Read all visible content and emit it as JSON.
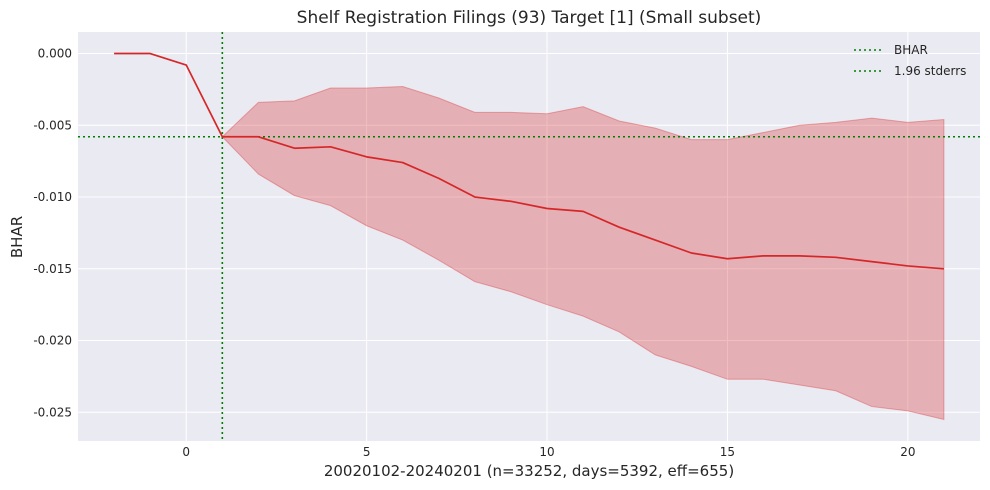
{
  "chart_data": {
    "type": "line",
    "title": "Shelf Registration Filings (93) Target [1] (Small subset)",
    "xlabel": "20020102-20240201 (n=33252, days=5392, eff=655)",
    "ylabel": "BHAR",
    "xlim": [
      -3,
      22
    ],
    "ylim": [
      -0.027,
      0.0015
    ],
    "x_ticks": [
      0,
      5,
      10,
      15,
      20
    ],
    "y_ticks": [
      0.0,
      -0.005,
      -0.01,
      -0.015,
      -0.02,
      -0.025
    ],
    "y_tick_labels": [
      "0.000",
      "-0.005",
      "-0.010",
      "-0.015",
      "-0.020",
      "-0.025"
    ],
    "grid": true,
    "legend_position": "top-right",
    "legend": [
      "BHAR",
      "1.96 stderrs"
    ],
    "colors": {
      "line": "#d62728",
      "band": "#d62728",
      "reference": "#008000",
      "plot_bg": "#eaeaf2"
    },
    "reference_lines": {
      "vertical_x": 1,
      "horizontal_y": -0.0058
    },
    "series": [
      {
        "name": "BHAR",
        "x": [
          -2,
          -1,
          0,
          1,
          2,
          3,
          4,
          5,
          6,
          7,
          8,
          9,
          10,
          11,
          12,
          13,
          14,
          15,
          16,
          17,
          18,
          19,
          20,
          21
        ],
        "values": [
          0.0,
          0.0,
          -0.0008,
          -0.0058,
          -0.0058,
          -0.0066,
          -0.0065,
          -0.0072,
          -0.0076,
          -0.0087,
          -0.01,
          -0.0103,
          -0.0108,
          -0.011,
          -0.0121,
          -0.013,
          -0.0139,
          -0.0143,
          -0.0141,
          -0.0141,
          -0.0142,
          -0.0145,
          -0.0148,
          -0.015
        ]
      },
      {
        "name": "1.96 stderrs",
        "x": [
          1,
          2,
          3,
          4,
          5,
          6,
          7,
          8,
          9,
          10,
          11,
          12,
          13,
          14,
          15,
          16,
          17,
          18,
          19,
          20,
          21
        ],
        "upper": [
          -0.0058,
          -0.0034,
          -0.0033,
          -0.0024,
          -0.0024,
          -0.0023,
          -0.0031,
          -0.0041,
          -0.0041,
          -0.0042,
          -0.0037,
          -0.0047,
          -0.0052,
          -0.006,
          -0.006,
          -0.0055,
          -0.005,
          -0.0048,
          -0.0045,
          -0.0048,
          -0.0046
        ],
        "lower": [
          -0.0058,
          -0.0084,
          -0.0099,
          -0.0106,
          -0.012,
          -0.013,
          -0.0144,
          -0.0159,
          -0.0166,
          -0.0175,
          -0.0183,
          -0.0194,
          -0.021,
          -0.0218,
          -0.0227,
          -0.0227,
          -0.0231,
          -0.0235,
          -0.0246,
          -0.0249,
          -0.0255
        ]
      }
    ]
  }
}
